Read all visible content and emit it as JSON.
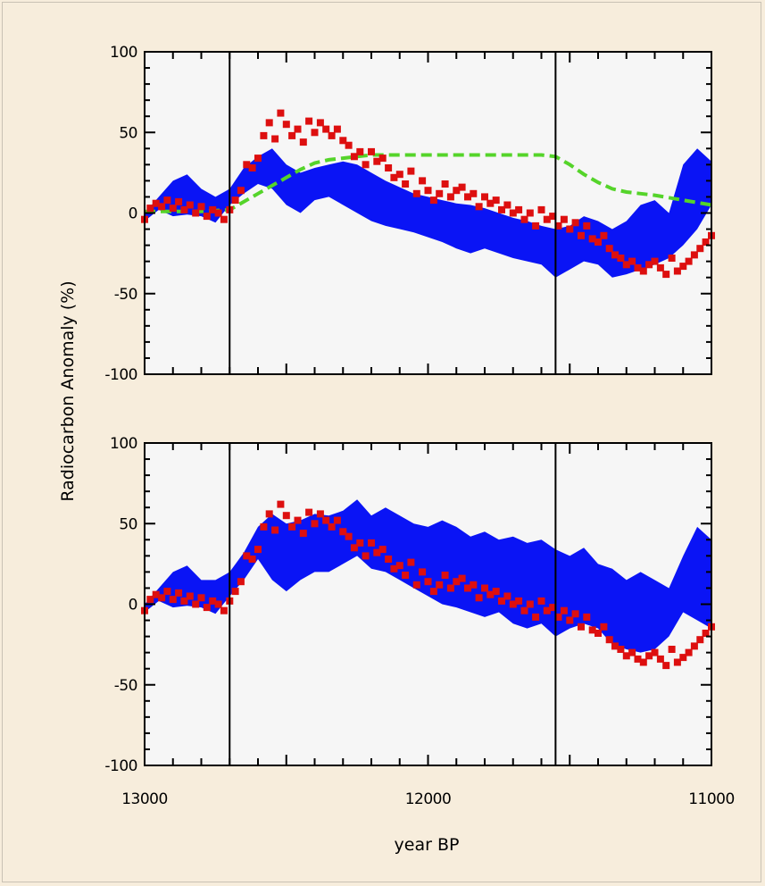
{
  "colors": {
    "background": "#f7eddc",
    "plot_bg": "#f6f6f6",
    "band": "#0a14f5",
    "measured": "#dd0f0f",
    "model": "#55d42a",
    "marker_lines": "#000000"
  },
  "chart_data": [
    {
      "type": "area",
      "panel": "top",
      "ylabel": "Radiocarbon Anomaly (%)",
      "xlabel": "year BP",
      "xlim": [
        13000,
        11000
      ],
      "x_reversed": true,
      "ylim": [
        -100,
        100
      ],
      "yticks": [
        -100,
        -50,
        0,
        50,
        100
      ],
      "ytick_labels": [
        "-100",
        "-50",
        "0",
        "50",
        "100"
      ],
      "vertical_lines": [
        12700,
        11550
      ],
      "band": {
        "x": [
          13000,
          12950,
          12900,
          12850,
          12800,
          12750,
          12700,
          12650,
          12600,
          12550,
          12500,
          12450,
          12400,
          12350,
          12300,
          12250,
          12200,
          12150,
          12100,
          12050,
          12000,
          11950,
          11900,
          11850,
          11800,
          11750,
          11700,
          11650,
          11600,
          11550,
          11500,
          11450,
          11400,
          11350,
          11300,
          11250,
          11200,
          11150,
          11100,
          11050,
          11000
        ],
        "upper": [
          0,
          10,
          20,
          24,
          15,
          10,
          15,
          28,
          35,
          40,
          30,
          25,
          28,
          30,
          32,
          30,
          25,
          20,
          16,
          12,
          10,
          8,
          6,
          5,
          3,
          0,
          -3,
          -5,
          -8,
          -10,
          -8,
          -2,
          -5,
          -10,
          -5,
          5,
          8,
          0,
          30,
          40,
          32
        ],
        "lower": [
          -5,
          2,
          -2,
          -1,
          -2,
          -6,
          5,
          12,
          18,
          15,
          5,
          0,
          8,
          10,
          5,
          0,
          -5,
          -8,
          -10,
          -12,
          -15,
          -18,
          -22,
          -25,
          -22,
          -25,
          -28,
          -30,
          -32,
          -40,
          -35,
          -30,
          -32,
          -40,
          -38,
          -35,
          -32,
          -28,
          -20,
          -10,
          5
        ]
      },
      "model_curve": {
        "x": [
          13000,
          12900,
          12800,
          12700,
          12650,
          12600,
          12550,
          12500,
          12450,
          12400,
          12350,
          12300,
          12250,
          12200,
          12100,
          12000,
          11900,
          11800,
          11700,
          11600,
          11550,
          11500,
          11450,
          11400,
          11350,
          11300,
          11200,
          11100,
          11000
        ],
        "y": [
          1,
          1,
          1,
          2,
          7,
          12,
          17,
          22,
          27,
          31,
          33,
          34,
          35,
          36,
          36,
          36,
          36,
          36,
          36,
          36,
          35,
          30,
          24,
          19,
          15,
          13,
          11,
          8,
          5
        ]
      },
      "measured": {
        "x": [
          13000,
          12980,
          12960,
          12940,
          12920,
          12900,
          12880,
          12860,
          12840,
          12820,
          12800,
          12780,
          12760,
          12740,
          12720,
          12700,
          12680,
          12660,
          12640,
          12620,
          12600,
          12580,
          12560,
          12540,
          12520,
          12500,
          12480,
          12460,
          12440,
          12420,
          12400,
          12380,
          12360,
          12340,
          12320,
          12300,
          12280,
          12260,
          12240,
          12220,
          12200,
          12180,
          12160,
          12140,
          12120,
          12100,
          12080,
          12060,
          12040,
          12020,
          12000,
          11980,
          11960,
          11940,
          11920,
          11900,
          11880,
          11860,
          11840,
          11820,
          11800,
          11780,
          11760,
          11740,
          11720,
          11700,
          11680,
          11660,
          11640,
          11620,
          11600,
          11580,
          11560,
          11540,
          11520,
          11500,
          11480,
          11460,
          11440,
          11420,
          11400,
          11380,
          11360,
          11340,
          11320,
          11300,
          11280,
          11260,
          11240,
          11220,
          11200,
          11180,
          11160,
          11140,
          11120,
          11100,
          11080,
          11060,
          11040,
          11020,
          11000
        ],
        "y": [
          -4,
          3,
          6,
          4,
          8,
          3,
          7,
          2,
          5,
          0,
          4,
          -2,
          2,
          0,
          -4,
          2,
          8,
          14,
          30,
          28,
          34,
          48,
          56,
          46,
          62,
          55,
          48,
          52,
          44,
          57,
          50,
          56,
          52,
          48,
          52,
          45,
          42,
          35,
          38,
          30,
          38,
          32,
          34,
          28,
          22,
          24,
          18,
          26,
          12,
          20,
          14,
          8,
          12,
          18,
          10,
          14,
          16,
          10,
          12,
          4,
          10,
          6,
          8,
          2,
          5,
          0,
          2,
          -4,
          0,
          -8,
          2,
          -4,
          -2,
          -8,
          -4,
          -10,
          -6,
          -14,
          -8,
          -16,
          -18,
          -14,
          -22,
          -26,
          -28,
          -32,
          -30,
          -34,
          -36,
          -32,
          -30,
          -34,
          -38,
          -28,
          -36,
          -33,
          -30,
          -26,
          -22,
          -18,
          -14
        ]
      }
    },
    {
      "type": "area",
      "panel": "bottom",
      "ylabel": "Radiocarbon Anomaly (%)",
      "xlabel": "year BP",
      "xlim": [
        13000,
        11000
      ],
      "x_reversed": true,
      "ylim": [
        -100,
        100
      ],
      "yticks": [
        -100,
        -50,
        0,
        50,
        100
      ],
      "ytick_labels": [
        "-100",
        "-50",
        "0",
        "50",
        "100"
      ],
      "xticks": [
        13000,
        12000,
        11000
      ],
      "xtick_labels": [
        "13000",
        "12000",
        "11000"
      ],
      "vertical_lines": [
        12700,
        11550
      ],
      "band": {
        "x": [
          13000,
          12950,
          12900,
          12850,
          12800,
          12750,
          12700,
          12650,
          12600,
          12550,
          12500,
          12450,
          12400,
          12350,
          12300,
          12250,
          12200,
          12150,
          12100,
          12050,
          12000,
          11950,
          11900,
          11850,
          11800,
          11750,
          11700,
          11650,
          11600,
          11550,
          11500,
          11450,
          11400,
          11350,
          11300,
          11250,
          11200,
          11150,
          11100,
          11050,
          11000
        ],
        "upper": [
          0,
          10,
          20,
          24,
          15,
          15,
          20,
          32,
          48,
          56,
          50,
          52,
          56,
          55,
          58,
          65,
          55,
          60,
          55,
          50,
          48,
          52,
          48,
          42,
          45,
          40,
          42,
          38,
          40,
          34,
          30,
          35,
          25,
          22,
          15,
          20,
          15,
          10,
          30,
          48,
          40
        ],
        "lower": [
          -5,
          2,
          -2,
          -1,
          -2,
          -6,
          5,
          15,
          28,
          15,
          8,
          15,
          20,
          20,
          25,
          30,
          22,
          20,
          15,
          10,
          5,
          0,
          -2,
          -5,
          -8,
          -5,
          -12,
          -15,
          -12,
          -20,
          -15,
          -12,
          -15,
          -25,
          -28,
          -30,
          -28,
          -20,
          -5,
          -10,
          -15
        ]
      },
      "measured": {
        "x": [
          13000,
          12980,
          12960,
          12940,
          12920,
          12900,
          12880,
          12860,
          12840,
          12820,
          12800,
          12780,
          12760,
          12740,
          12720,
          12700,
          12680,
          12660,
          12640,
          12620,
          12600,
          12580,
          12560,
          12540,
          12520,
          12500,
          12480,
          12460,
          12440,
          12420,
          12400,
          12380,
          12360,
          12340,
          12320,
          12300,
          12280,
          12260,
          12240,
          12220,
          12200,
          12180,
          12160,
          12140,
          12120,
          12100,
          12080,
          12060,
          12040,
          12020,
          12000,
          11980,
          11960,
          11940,
          11920,
          11900,
          11880,
          11860,
          11840,
          11820,
          11800,
          11780,
          11760,
          11740,
          11720,
          11700,
          11680,
          11660,
          11640,
          11620,
          11600,
          11580,
          11560,
          11540,
          11520,
          11500,
          11480,
          11460,
          11440,
          11420,
          11400,
          11380,
          11360,
          11340,
          11320,
          11300,
          11280,
          11260,
          11240,
          11220,
          11200,
          11180,
          11160,
          11140,
          11120,
          11100,
          11080,
          11060,
          11040,
          11020,
          11000
        ],
        "y": [
          -4,
          3,
          6,
          4,
          8,
          3,
          7,
          2,
          5,
          0,
          4,
          -2,
          2,
          0,
          -4,
          2,
          8,
          14,
          30,
          28,
          34,
          48,
          56,
          46,
          62,
          55,
          48,
          52,
          44,
          57,
          50,
          56,
          52,
          48,
          52,
          45,
          42,
          35,
          38,
          30,
          38,
          32,
          34,
          28,
          22,
          24,
          18,
          26,
          12,
          20,
          14,
          8,
          12,
          18,
          10,
          14,
          16,
          10,
          12,
          4,
          10,
          6,
          8,
          2,
          5,
          0,
          2,
          -4,
          0,
          -8,
          2,
          -4,
          -2,
          -8,
          -4,
          -10,
          -6,
          -14,
          -8,
          -16,
          -18,
          -14,
          -22,
          -26,
          -28,
          -32,
          -30,
          -34,
          -36,
          -32,
          -30,
          -34,
          -38,
          -28,
          -36,
          -33,
          -30,
          -26,
          -22,
          -18,
          -14
        ]
      }
    }
  ]
}
